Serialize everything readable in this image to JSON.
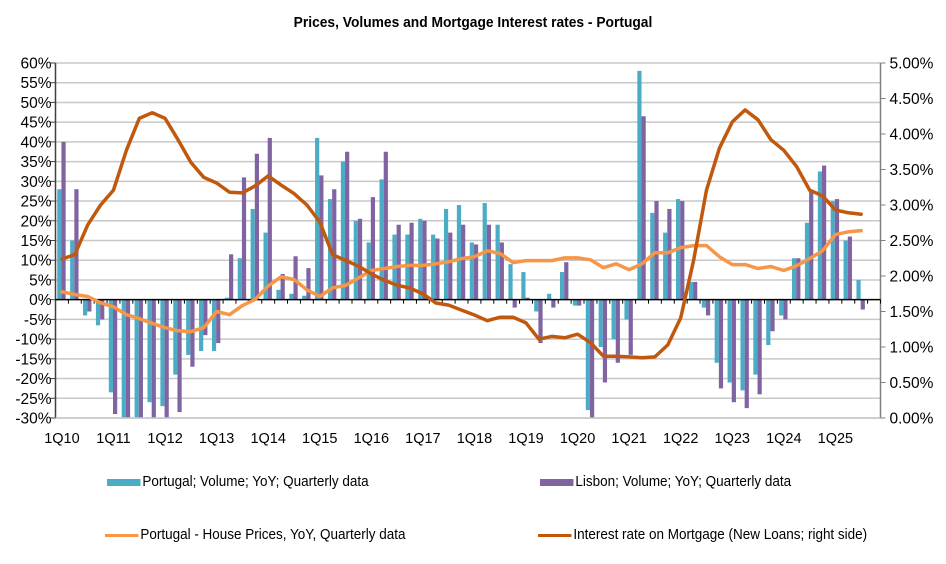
{
  "chart_data": {
    "type": "bar",
    "title": "Prices, Volumes and Mortgage Interest rates -  Portugal",
    "xlabel": "",
    "ylabel": "",
    "y_left": {
      "min": -30,
      "max": 60,
      "step": 5,
      "unit": "%",
      "ticks": [
        "60%",
        "55%",
        "50%",
        "45%",
        "40%",
        "35%",
        "30%",
        "25%",
        "20%",
        "15%",
        "10%",
        "5%",
        "0%",
        "-5%",
        "-10%",
        "-15%",
        "-20%",
        "-25%",
        "-30%"
      ]
    },
    "y_right": {
      "min": 0,
      "max": 5,
      "step": 0.5,
      "unit": "%",
      "ticks": [
        "5.00%",
        "4.50%",
        "4.00%",
        "3.50%",
        "3.00%",
        "2.50%",
        "2.00%",
        "1.50%",
        "1.00%",
        "0.50%",
        "0.00%"
      ]
    },
    "grid": true,
    "legend_position": "bottom",
    "x_tick_labels": [
      "1Q10",
      "1Q11",
      "1Q12",
      "1Q13",
      "1Q14",
      "1Q15",
      "1Q16",
      "1Q17",
      "1Q18",
      "1Q19",
      "1Q20",
      "1Q21",
      "1Q22",
      "1Q23",
      "1Q24",
      "1Q25"
    ],
    "categories": [
      "1Q10",
      "2Q10",
      "3Q10",
      "4Q10",
      "1Q11",
      "2Q11",
      "3Q11",
      "4Q11",
      "1Q12",
      "2Q12",
      "3Q12",
      "4Q12",
      "1Q13",
      "2Q13",
      "3Q13",
      "4Q13",
      "1Q14",
      "2Q14",
      "3Q14",
      "4Q14",
      "1Q15",
      "2Q15",
      "3Q15",
      "4Q15",
      "1Q16",
      "2Q16",
      "3Q16",
      "4Q16",
      "1Q17",
      "2Q17",
      "3Q17",
      "4Q17",
      "1Q18",
      "2Q18",
      "3Q18",
      "4Q18",
      "1Q19",
      "2Q19",
      "3Q19",
      "4Q19",
      "1Q20",
      "2Q20",
      "3Q20",
      "4Q20",
      "1Q21",
      "2Q21",
      "3Q21",
      "4Q21",
      "1Q22",
      "2Q22",
      "3Q22",
      "4Q22",
      "1Q23",
      "2Q23",
      "3Q23",
      "4Q23",
      "1Q24",
      "2Q24",
      "3Q24",
      "4Q24",
      "1Q25",
      "2Q25",
      "3Q25",
      "4Q25"
    ],
    "series": [
      {
        "name": "Portugal; Volume; YoY; Quarterly data",
        "type": "bar",
        "axis": "left",
        "color": "#4BACC6",
        "values": [
          28,
          15,
          -4,
          -6.5,
          -23.5,
          -30,
          -30,
          -26,
          -27,
          -19,
          -14,
          -13,
          -13,
          0.5,
          10.5,
          23,
          17,
          2.5,
          1.5,
          1,
          41,
          25.5,
          35,
          20,
          14.5,
          30.5,
          16.5,
          16.5,
          20.5,
          16.5,
          23,
          24,
          14.5,
          24.5,
          19,
          9,
          7,
          -3,
          1.5,
          7,
          -1.5,
          -28,
          -12,
          -10,
          -5,
          58,
          22,
          17,
          25.5,
          4.5,
          -2,
          -16,
          -21,
          -23,
          -19,
          -11.5,
          -4,
          10.5,
          19.5,
          32.5,
          25,
          15,
          5,
          null
        ]
      },
      {
        "name": "Lisbon; Volume; YoY; Quarterly data",
        "type": "bar",
        "axis": "left",
        "color": "#8064A2",
        "values": [
          40,
          28,
          -3,
          -5,
          -29,
          -30,
          -30,
          -30,
          -30,
          -28.5,
          -17,
          -9,
          -11,
          11.5,
          31,
          37,
          41,
          6.5,
          11,
          8,
          31.5,
          28,
          37.5,
          20.5,
          26,
          37.5,
          19,
          19.5,
          20,
          15.5,
          17,
          19,
          14,
          19,
          14.5,
          -2,
          0.5,
          -11,
          -2,
          9.5,
          -1.5,
          -30,
          -21,
          -16,
          -14,
          46.5,
          25,
          23,
          25,
          4.5,
          -4,
          -22.5,
          -26,
          -27.5,
          -24,
          -8,
          -5,
          10.5,
          27.5,
          34,
          25.5,
          16,
          -2.5,
          null
        ]
      },
      {
        "name": "Portugal - House Prices, YoY, Quarterly data",
        "type": "line",
        "axis": "left",
        "color": "#F79646",
        "values": [
          2,
          1.3,
          0.8,
          -0.8,
          -1.8,
          -3.8,
          -4.8,
          -6,
          -7.1,
          -7.9,
          -8.1,
          -7.1,
          -3,
          -3.8,
          -1.5,
          0.1,
          3.5,
          5.8,
          5.1,
          2.5,
          0.8,
          3,
          3.6,
          5.5,
          7.4,
          7.9,
          8.4,
          8.7,
          8.7,
          9.1,
          9.6,
          10.4,
          10.9,
          12.4,
          11.7,
          9.4,
          9.9,
          9.9,
          9.9,
          10.6,
          10.6,
          10.1,
          8.1,
          9.1,
          7.6,
          9.1,
          11.9,
          11.9,
          13.2,
          13.7,
          13.7,
          10.9,
          8.9,
          8.9,
          7.9,
          8.4,
          7.4,
          8.6,
          10.4,
          12.4,
          16.5,
          17.2,
          17.5,
          null
        ]
      },
      {
        "name": "Interest rate on Mortgage (New Loans; right side)",
        "type": "line",
        "axis": "right",
        "color": "#C0580E",
        "values": [
          2.24,
          2.3,
          2.72,
          3.0,
          3.21,
          3.77,
          4.22,
          4.3,
          4.22,
          3.92,
          3.6,
          3.39,
          3.31,
          3.18,
          3.17,
          3.27,
          3.41,
          3.28,
          3.16,
          3.0,
          2.76,
          2.3,
          2.22,
          2.14,
          2.03,
          1.94,
          1.87,
          1.83,
          1.75,
          1.62,
          1.59,
          1.52,
          1.45,
          1.37,
          1.42,
          1.42,
          1.34,
          1.11,
          1.15,
          1.13,
          1.18,
          1.06,
          0.87,
          0.87,
          0.86,
          0.85,
          0.86,
          1.03,
          1.41,
          2.22,
          3.21,
          3.8,
          4.17,
          4.34,
          4.2,
          3.92,
          3.77,
          3.54,
          3.21,
          3.13,
          2.93,
          2.89,
          2.87,
          null
        ]
      }
    ]
  },
  "legend": {
    "items": [
      {
        "label": "Portugal; Volume; YoY; Quarterly data",
        "color": "#4BACC6"
      },
      {
        "label": "Lisbon; Volume; YoY; Quarterly data",
        "color": "#8064A2"
      },
      {
        "label": "Portugal - House Prices, YoY, Quarterly data",
        "color": "#F79646"
      },
      {
        "label": "Interest rate on Mortgage (New Loans; right side)",
        "color": "#C0580E"
      }
    ]
  }
}
